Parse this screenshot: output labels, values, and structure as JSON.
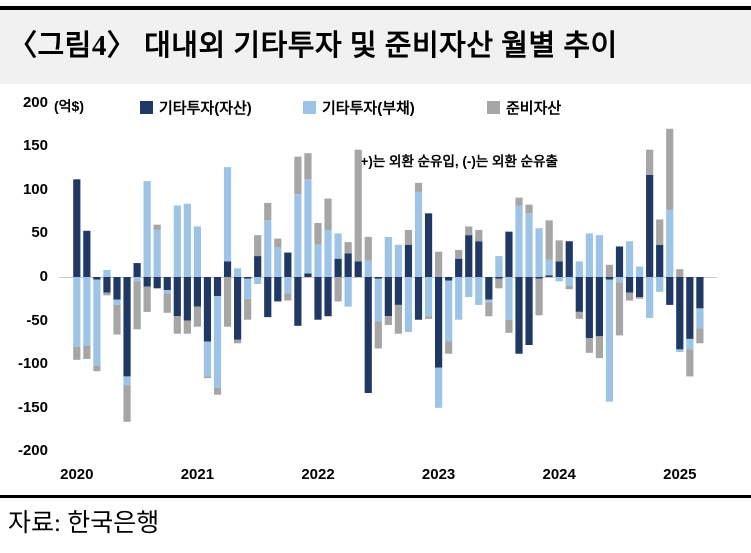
{
  "header": {
    "title": "〈그림4〉 대내외 기타투자 및 준비자산 월별 추이"
  },
  "legend": {
    "items": [
      {
        "label": "기타투자(자산)",
        "color": "#1f3864"
      },
      {
        "label": "기타투자(부채)",
        "color": "#9dc3e6"
      },
      {
        "label": "준비자산",
        "color": "#a6a6a6"
      }
    ]
  },
  "footer": {
    "source": "자료: 한국은행"
  },
  "chart_data": {
    "type": "bar",
    "stacked": true,
    "title": "대내외 기타투자 및 준비자산 월별 추이",
    "unit_label": "(억$)",
    "annotation": "(+)는 외환 순유입, (-)는 외환 순유출",
    "ylim": [
      -200,
      200
    ],
    "grid": false,
    "legend_position": "top",
    "y_ticks": [
      200,
      150,
      100,
      50,
      0,
      -50,
      -100,
      -150,
      -200
    ],
    "x_year_labels": [
      "2020",
      "2021",
      "2022",
      "2023",
      "2024",
      "2025"
    ],
    "months": [
      "2020-01",
      "2020-02",
      "2020-03",
      "2020-04",
      "2020-05",
      "2020-06",
      "2020-07",
      "2020-08",
      "2020-09",
      "2020-10",
      "2020-11",
      "2020-12",
      "2021-01",
      "2021-02",
      "2021-03",
      "2021-04",
      "2021-05",
      "2021-06",
      "2021-07",
      "2021-08",
      "2021-09",
      "2021-10",
      "2021-11",
      "2021-12",
      "2022-01",
      "2022-02",
      "2022-03",
      "2022-04",
      "2022-05",
      "2022-06",
      "2022-07",
      "2022-08",
      "2022-09",
      "2022-10",
      "2022-11",
      "2022-12",
      "2023-01",
      "2023-02",
      "2023-03",
      "2023-04",
      "2023-05",
      "2023-06",
      "2023-07",
      "2023-08",
      "2023-09",
      "2023-10",
      "2023-11",
      "2023-12",
      "2024-01",
      "2024-02",
      "2024-03",
      "2024-04",
      "2024-05",
      "2024-06",
      "2024-07",
      "2024-08",
      "2024-09",
      "2024-10",
      "2024-11",
      "2024-12",
      "2025-01",
      "2025-02",
      "2025-03"
    ],
    "series": [
      {
        "name": "기타투자(자산)",
        "color": "#1f3864",
        "values": [
          112,
          53,
          -3,
          -18,
          -26,
          -114,
          16,
          -11,
          -13,
          -15,
          -45,
          -50,
          -34,
          -74,
          -22,
          18,
          -72,
          -2,
          24,
          -46,
          -28,
          28,
          -56,
          4,
          -49,
          -45,
          21,
          27,
          18,
          -133,
          -2,
          -45,
          -32,
          37,
          -49,
          73,
          -104,
          -4,
          21,
          48,
          41,
          -26,
          -2,
          52,
          -88,
          -78,
          -2,
          2,
          18,
          41,
          -40,
          -70,
          -68,
          -3,
          35,
          -18,
          -23,
          117,
          37,
          -32,
          -83,
          -71,
          -36
        ]
      },
      {
        "name": "기타투자(부채)",
        "color": "#9dc3e6",
        "values": [
          -80,
          -79,
          -99,
          8,
          -6,
          -10,
          -5,
          110,
          54,
          -4,
          82,
          84,
          58,
          -40,
          -105,
          108,
          10,
          -23,
          -8,
          65,
          34,
          -19,
          95,
          108,
          37,
          54,
          29,
          -34,
          0,
          19,
          -49,
          46,
          37,
          -63,
          98,
          -45,
          -46,
          -70,
          -49,
          -23,
          -32,
          -3,
          24,
          -49,
          82,
          73,
          56,
          18,
          -5,
          -10,
          18,
          50,
          48,
          -140,
          -6,
          41,
          12,
          -47,
          -17,
          77,
          -3,
          -12,
          -23
        ]
      },
      {
        "name": "준비자산",
        "color": "#a6a6a6",
        "values": [
          -15,
          -15,
          -6,
          -3,
          -34,
          -42,
          -55,
          -29,
          6,
          -22,
          -20,
          -15,
          -23,
          -2,
          -8,
          -57,
          -4,
          -24,
          24,
          20,
          10,
          -8,
          43,
          30,
          25,
          36,
          -28,
          13,
          128,
          27,
          -31,
          -10,
          -33,
          17,
          10,
          -3,
          29,
          -14,
          10,
          10,
          13,
          -16,
          -11,
          -15,
          9,
          10,
          -42,
          45,
          24,
          -4,
          -8,
          -17,
          -25,
          14,
          -61,
          -9,
          -2,
          29,
          29,
          93,
          9,
          -31,
          -17
        ]
      }
    ]
  }
}
